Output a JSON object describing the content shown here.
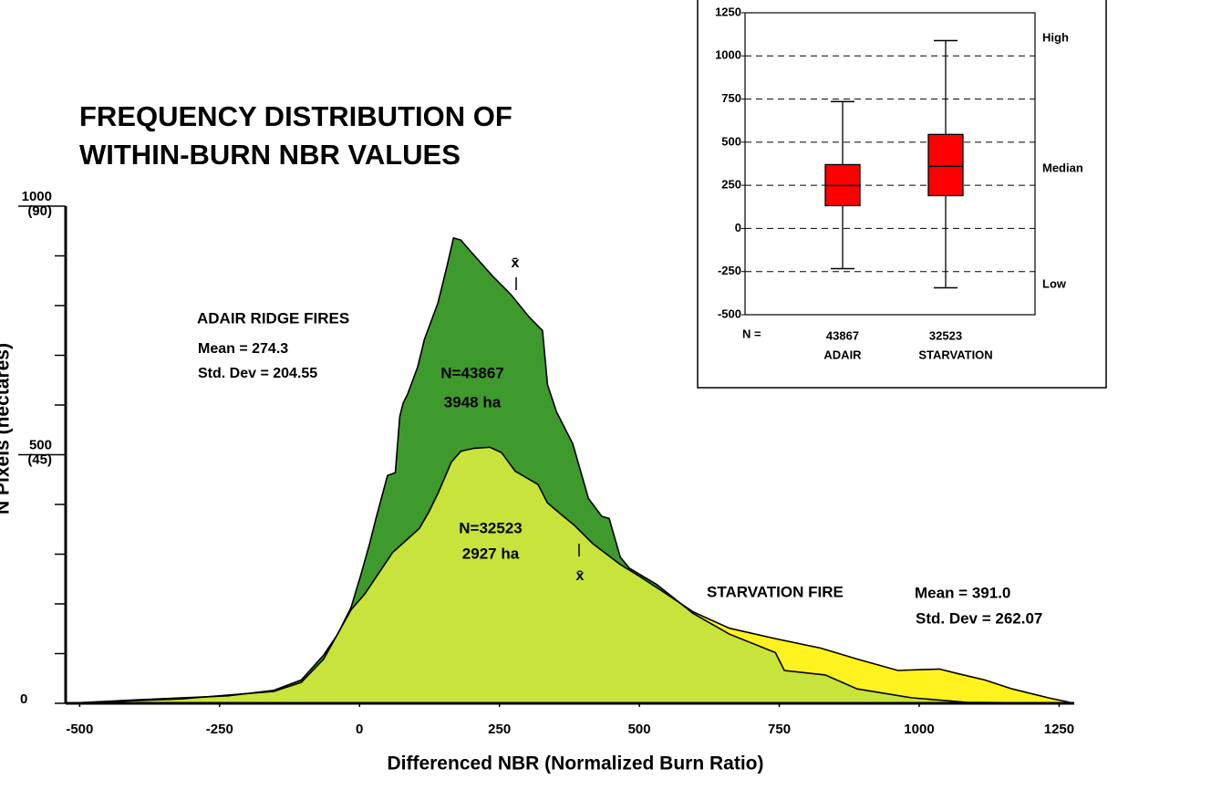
{
  "chart_data": [
    {
      "type": "area",
      "title": [
        "FREQUENCY DISTRIBUTION OF",
        "WITHIN-BURN NBR VALUES"
      ],
      "x_label": "Differenced NBR (Normalized Burn Ratio)",
      "y_label": "N Pixels (hectares)",
      "xlim": [
        -525,
        1277
      ],
      "ylim": [
        0,
        1000
      ],
      "xticks": [
        -500,
        -250,
        0,
        250,
        500,
        750,
        1000,
        1250
      ],
      "yticks": [
        {
          "value": 0,
          "label": "0"
        },
        {
          "value": 100,
          "label": null
        },
        {
          "value": 200,
          "label": null
        },
        {
          "value": 300,
          "label": null
        },
        {
          "value": 400,
          "label": null
        },
        {
          "value": 500,
          "label": "500",
          "hectares": "(45)"
        },
        {
          "value": 600,
          "label": null
        },
        {
          "value": 700,
          "label": null
        },
        {
          "value": 800,
          "label": null
        },
        {
          "value": 900,
          "label": null
        },
        {
          "value": 1000,
          "label": "1000",
          "hectares": "(90)"
        }
      ],
      "mean_symbol": "x̄",
      "series": [
        {
          "name": "ADAIR RIDGE FIRES",
          "color": "#3f9a2d",
          "mean_label": "Mean = 274.3",
          "sd_label": "Std. Dev = 204.55",
          "n_label": "N=43867",
          "area_label": "3948 ha",
          "x": [
            -525,
            -397,
            -235,
            -153,
            -104,
            -64,
            -39,
            -15,
            2,
            18,
            29,
            50,
            64,
            72,
            78,
            86,
            104,
            116,
            140,
            156,
            168,
            181,
            197,
            238,
            270,
            303,
            327,
            336,
            352,
            381,
            409,
            433,
            446,
            466,
            482,
            531,
            596,
            661,
            743,
            759,
            832,
            889,
            987,
            1085,
            1277
          ],
          "values": [
            0,
            7,
            15,
            26,
            47,
            97,
            139,
            193,
            257,
            321,
            370,
            458,
            464,
            577,
            604,
            622,
            677,
            732,
            805,
            878,
            936,
            932,
            911,
            859,
            823,
            777,
            750,
            641,
            586,
            522,
            412,
            376,
            372,
            294,
            272,
            239,
            181,
            139,
            102,
            66,
            57,
            29,
            11,
            2,
            0
          ]
        },
        {
          "name": "STARVATION FIRE",
          "color": "#fff21e",
          "overlap_color": "#c8e43c",
          "mean_label": "Mean = 391.0",
          "sd_label": "Std. Dev = 262.07",
          "n_label": "N=32523",
          "area_label": "2927 ha",
          "x": [
            -525,
            -316,
            -153,
            -104,
            -64,
            -15,
            10,
            59,
            107,
            124,
            140,
            164,
            181,
            205,
            233,
            254,
            278,
            319,
            336,
            360,
            384,
            417,
            466,
            498,
            547,
            596,
            661,
            743,
            824,
            889,
            962,
            1036,
            1068,
            1117,
            1166,
            1231,
            1277
          ],
          "values": [
            0,
            9,
            24,
            42,
            89,
            188,
            221,
            303,
            352,
            385,
            422,
            485,
            507,
            513,
            515,
            504,
            467,
            440,
            403,
            380,
            358,
            321,
            279,
            257,
            221,
            184,
            151,
            130,
            111,
            89,
            66,
            69,
            60,
            47,
            29,
            11,
            0
          ]
        }
      ]
    },
    {
      "type": "box",
      "categories": [
        "ADAIR",
        "STARVATION"
      ],
      "n_label": "N =",
      "n_values": [
        "43867",
        "32523"
      ],
      "side_labels": [
        "High",
        "Median",
        "Low"
      ],
      "color": "#ff0000",
      "ylim": [
        -500,
        1250
      ],
      "yticks": [
        -500,
        -250,
        0,
        250,
        500,
        750,
        1000,
        1250
      ],
      "grid": true,
      "low": [
        -233,
        -344
      ],
      "q1": [
        132,
        190
      ],
      "median": [
        249,
        360
      ],
      "q3": [
        370,
        545
      ],
      "high": [
        735,
        1089
      ]
    }
  ]
}
